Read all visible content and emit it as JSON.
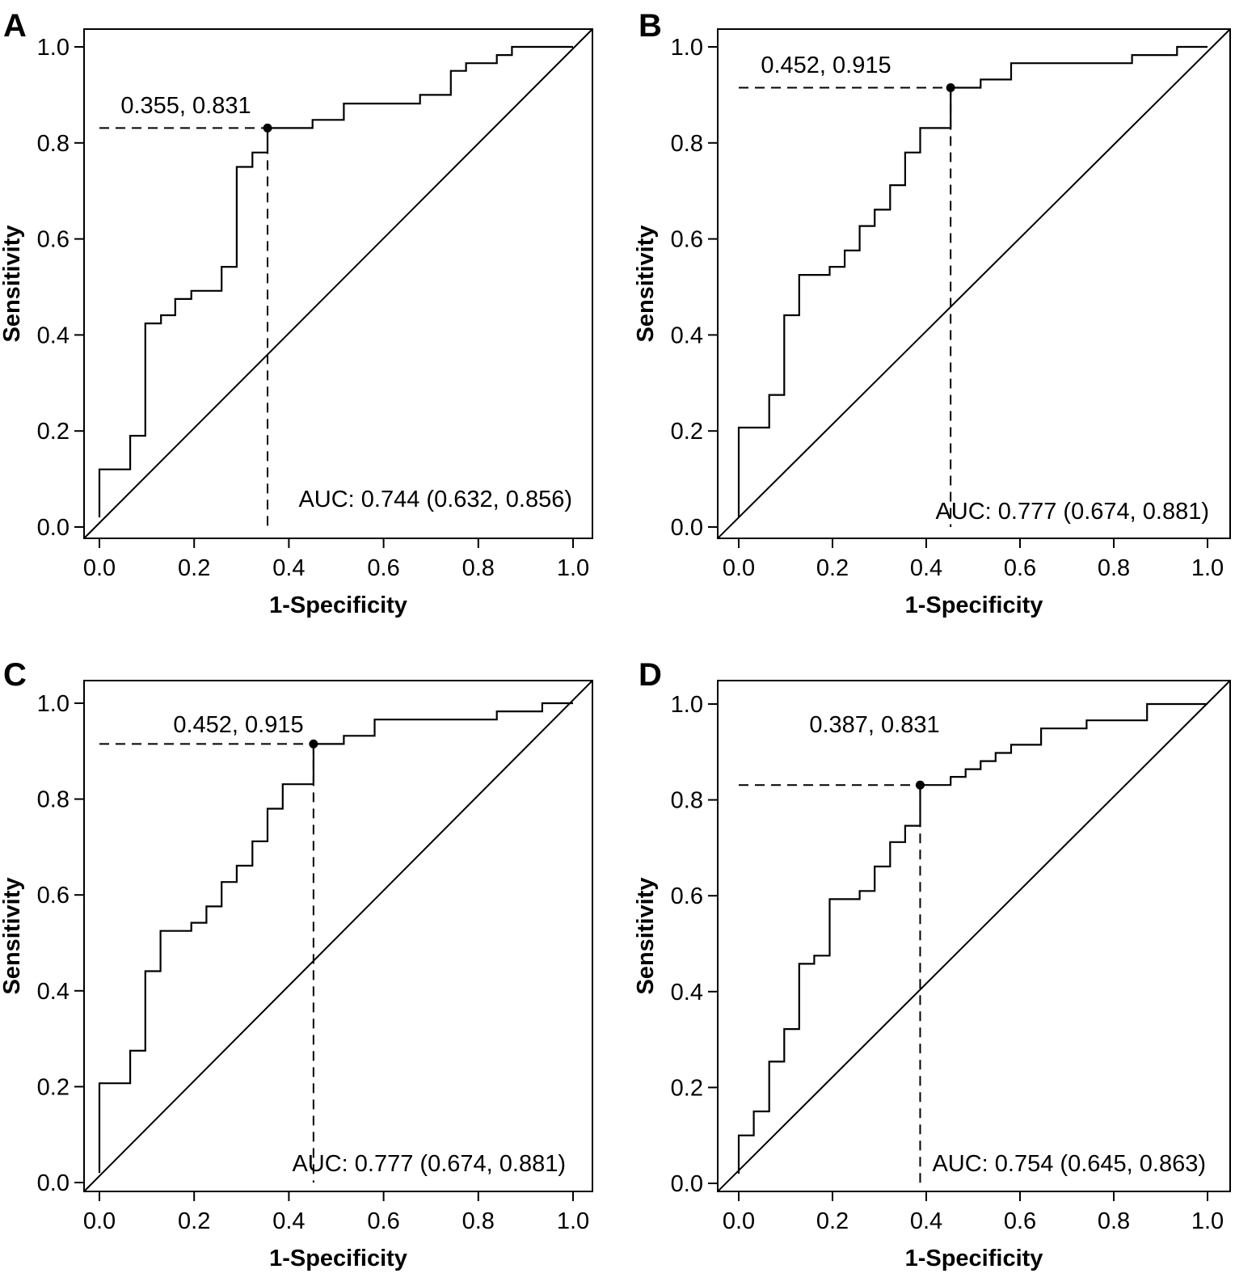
{
  "figure": {
    "panels": [
      {
        "letter": "A",
        "xlabel": "1-Specificity",
        "ylabel": "Sensitivity",
        "auc_text": "AUC: 0.744 (0.632, 0.856)",
        "cutoff_label": "0.355, 0.831",
        "xticks": [
          "0.0",
          "0.2",
          "0.4",
          "0.6",
          "0.8",
          "1.0"
        ],
        "yticks": [
          "0.0",
          "0.2",
          "0.4",
          "0.6",
          "0.8",
          "1.0"
        ]
      },
      {
        "letter": "B",
        "xlabel": "1-Specificity",
        "ylabel": "Sensitivity",
        "auc_text": "AUC: 0.777 (0.674, 0.881)",
        "cutoff_label": "0.452, 0.915",
        "xticks": [
          "0.0",
          "0.2",
          "0.4",
          "0.6",
          "0.8",
          "1.0"
        ],
        "yticks": [
          "0.0",
          "0.2",
          "0.4",
          "0.6",
          "0.8",
          "1.0"
        ]
      },
      {
        "letter": "C",
        "xlabel": "1-Specificity",
        "ylabel": "Sensitivity",
        "auc_text": "AUC: 0.777 (0.674, 0.881)",
        "cutoff_label": "0.452, 0.915",
        "xticks": [
          "0.0",
          "0.2",
          "0.4",
          "0.6",
          "0.8",
          "1.0"
        ],
        "yticks": [
          "0.0",
          "0.2",
          "0.4",
          "0.6",
          "0.8",
          "1.0"
        ]
      },
      {
        "letter": "D",
        "xlabel": "1-Specificity",
        "ylabel": "Sensitivity",
        "auc_text": "AUC: 0.754 (0.645, 0.863)",
        "cutoff_label": "0.387, 0.831",
        "xticks": [
          "0.0",
          "0.2",
          "0.4",
          "0.6",
          "0.8",
          "1.0"
        ],
        "yticks": [
          "0.0",
          "0.2",
          "0.4",
          "0.6",
          "0.8",
          "1.0"
        ]
      }
    ]
  },
  "chart_data": [
    {
      "type": "line",
      "panel": "A",
      "xlabel": "1-Specificity",
      "ylabel": "Sensitivity",
      "xlim": [
        0,
        1
      ],
      "ylim": [
        0,
        1
      ],
      "grid": false,
      "annotations": [
        "0.355, 0.831",
        "AUC: 0.744 (0.632, 0.856)"
      ],
      "cutoff_point": {
        "x": 0.355,
        "y": 0.831
      },
      "roc_curve": [
        [
          0,
          0.02
        ],
        [
          0,
          0.12
        ],
        [
          0.065,
          0.12
        ],
        [
          0.065,
          0.19
        ],
        [
          0.097,
          0.19
        ],
        [
          0.097,
          0.424
        ],
        [
          0.13,
          0.424
        ],
        [
          0.13,
          0.441
        ],
        [
          0.16,
          0.441
        ],
        [
          0.16,
          0.475
        ],
        [
          0.194,
          0.475
        ],
        [
          0.194,
          0.492
        ],
        [
          0.258,
          0.492
        ],
        [
          0.258,
          0.542
        ],
        [
          0.29,
          0.542
        ],
        [
          0.29,
          0.75
        ],
        [
          0.323,
          0.75
        ],
        [
          0.323,
          0.78
        ],
        [
          0.355,
          0.78
        ],
        [
          0.355,
          0.831
        ],
        [
          0.45,
          0.831
        ],
        [
          0.45,
          0.848
        ],
        [
          0.516,
          0.848
        ],
        [
          0.516,
          0.882
        ],
        [
          0.677,
          0.882
        ],
        [
          0.677,
          0.9
        ],
        [
          0.742,
          0.9
        ],
        [
          0.742,
          0.95
        ],
        [
          0.774,
          0.95
        ],
        [
          0.774,
          0.966
        ],
        [
          0.839,
          0.966
        ],
        [
          0.839,
          0.983
        ],
        [
          0.871,
          0.983
        ],
        [
          0.871,
          1.0
        ],
        [
          1.0,
          1.0
        ]
      ],
      "reference_line": [
        [
          0,
          0
        ],
        [
          1,
          1
        ]
      ]
    },
    {
      "type": "line",
      "panel": "B",
      "xlabel": "1-Specificity",
      "ylabel": "Sensitivity",
      "xlim": [
        0,
        1
      ],
      "ylim": [
        0,
        1
      ],
      "grid": false,
      "annotations": [
        "0.452, 0.915",
        "AUC: 0.777 (0.674, 0.881)"
      ],
      "cutoff_point": {
        "x": 0.452,
        "y": 0.915
      },
      "roc_curve": [
        [
          0,
          0.02
        ],
        [
          0,
          0.207
        ],
        [
          0.065,
          0.207
        ],
        [
          0.065,
          0.275
        ],
        [
          0.097,
          0.275
        ],
        [
          0.097,
          0.441
        ],
        [
          0.129,
          0.441
        ],
        [
          0.129,
          0.525
        ],
        [
          0.194,
          0.525
        ],
        [
          0.194,
          0.542
        ],
        [
          0.226,
          0.542
        ],
        [
          0.226,
          0.576
        ],
        [
          0.258,
          0.576
        ],
        [
          0.258,
          0.627
        ],
        [
          0.29,
          0.627
        ],
        [
          0.29,
          0.661
        ],
        [
          0.323,
          0.661
        ],
        [
          0.323,
          0.712
        ],
        [
          0.355,
          0.712
        ],
        [
          0.355,
          0.78
        ],
        [
          0.387,
          0.78
        ],
        [
          0.387,
          0.831
        ],
        [
          0.452,
          0.831
        ],
        [
          0.452,
          0.915
        ],
        [
          0.516,
          0.915
        ],
        [
          0.516,
          0.932
        ],
        [
          0.581,
          0.932
        ],
        [
          0.581,
          0.966
        ],
        [
          0.839,
          0.966
        ],
        [
          0.839,
          0.983
        ],
        [
          0.935,
          0.983
        ],
        [
          0.935,
          1.0
        ],
        [
          1.0,
          1.0
        ]
      ],
      "reference_line": [
        [
          0,
          0
        ],
        [
          1,
          1
        ]
      ]
    },
    {
      "type": "line",
      "panel": "C",
      "xlabel": "1-Specificity",
      "ylabel": "Sensitivity",
      "xlim": [
        0,
        1
      ],
      "ylim": [
        0,
        1
      ],
      "grid": false,
      "annotations": [
        "0.452, 0.915",
        "AUC: 0.777 (0.674, 0.881)"
      ],
      "cutoff_point": {
        "x": 0.452,
        "y": 0.915
      },
      "roc_curve": [
        [
          0,
          0.02
        ],
        [
          0,
          0.207
        ],
        [
          0.065,
          0.207
        ],
        [
          0.065,
          0.275
        ],
        [
          0.097,
          0.275
        ],
        [
          0.097,
          0.441
        ],
        [
          0.129,
          0.441
        ],
        [
          0.129,
          0.525
        ],
        [
          0.194,
          0.525
        ],
        [
          0.194,
          0.542
        ],
        [
          0.226,
          0.542
        ],
        [
          0.226,
          0.576
        ],
        [
          0.258,
          0.576
        ],
        [
          0.258,
          0.627
        ],
        [
          0.29,
          0.627
        ],
        [
          0.29,
          0.661
        ],
        [
          0.323,
          0.661
        ],
        [
          0.323,
          0.712
        ],
        [
          0.355,
          0.712
        ],
        [
          0.355,
          0.78
        ],
        [
          0.387,
          0.78
        ],
        [
          0.387,
          0.831
        ],
        [
          0.452,
          0.831
        ],
        [
          0.452,
          0.915
        ],
        [
          0.516,
          0.915
        ],
        [
          0.516,
          0.932
        ],
        [
          0.581,
          0.932
        ],
        [
          0.581,
          0.966
        ],
        [
          0.839,
          0.966
        ],
        [
          0.839,
          0.983
        ],
        [
          0.935,
          0.983
        ],
        [
          0.935,
          1.0
        ],
        [
          1.0,
          1.0
        ]
      ],
      "reference_line": [
        [
          0,
          0
        ],
        [
          1,
          1
        ]
      ]
    },
    {
      "type": "line",
      "panel": "D",
      "xlabel": "1-Specificity",
      "ylabel": "Sensitivity",
      "xlim": [
        0,
        1
      ],
      "ylim": [
        0,
        1
      ],
      "grid": false,
      "annotations": [
        "0.387, 0.831",
        "AUC: 0.754 (0.645, 0.863)"
      ],
      "cutoff_point": {
        "x": 0.387,
        "y": 0.831
      },
      "roc_curve": [
        [
          0,
          0.02
        ],
        [
          0,
          0.1
        ],
        [
          0.032,
          0.1
        ],
        [
          0.032,
          0.15
        ],
        [
          0.065,
          0.15
        ],
        [
          0.065,
          0.254
        ],
        [
          0.097,
          0.254
        ],
        [
          0.097,
          0.322
        ],
        [
          0.129,
          0.322
        ],
        [
          0.129,
          0.458
        ],
        [
          0.161,
          0.458
        ],
        [
          0.161,
          0.475
        ],
        [
          0.194,
          0.475
        ],
        [
          0.194,
          0.593
        ],
        [
          0.258,
          0.593
        ],
        [
          0.258,
          0.61
        ],
        [
          0.29,
          0.61
        ],
        [
          0.29,
          0.661
        ],
        [
          0.323,
          0.661
        ],
        [
          0.323,
          0.712
        ],
        [
          0.355,
          0.712
        ],
        [
          0.355,
          0.746
        ],
        [
          0.387,
          0.746
        ],
        [
          0.387,
          0.831
        ],
        [
          0.452,
          0.831
        ],
        [
          0.452,
          0.848
        ],
        [
          0.484,
          0.848
        ],
        [
          0.484,
          0.864
        ],
        [
          0.516,
          0.864
        ],
        [
          0.516,
          0.881
        ],
        [
          0.548,
          0.881
        ],
        [
          0.548,
          0.898
        ],
        [
          0.581,
          0.898
        ],
        [
          0.581,
          0.915
        ],
        [
          0.645,
          0.915
        ],
        [
          0.645,
          0.949
        ],
        [
          0.742,
          0.949
        ],
        [
          0.742,
          0.966
        ],
        [
          0.871,
          0.966
        ],
        [
          0.871,
          1.0
        ],
        [
          1.0,
          1.0
        ]
      ],
      "reference_line": [
        [
          0,
          0
        ],
        [
          1,
          1
        ]
      ]
    }
  ]
}
